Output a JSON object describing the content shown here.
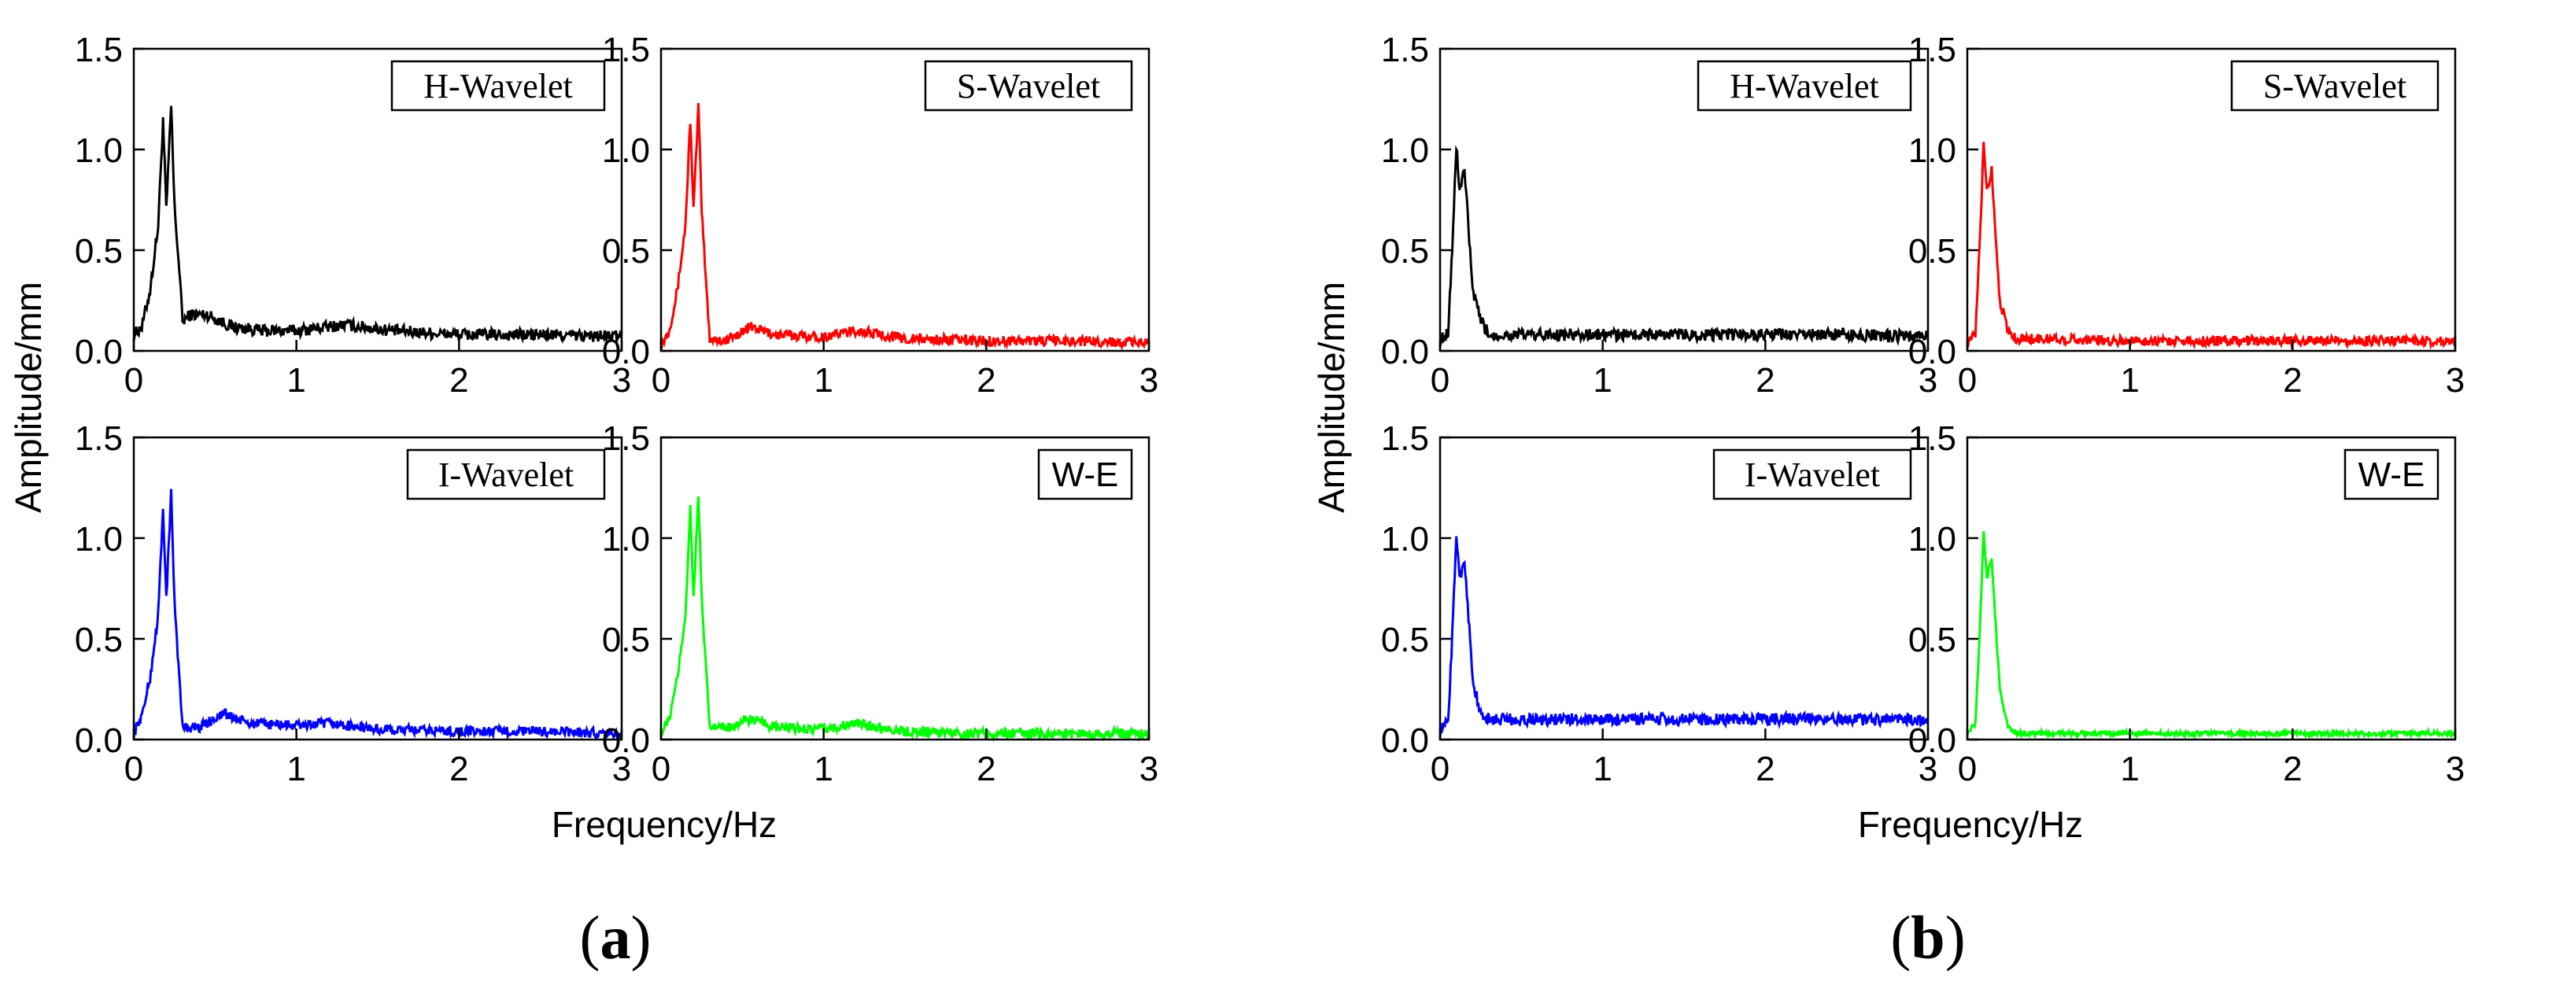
{
  "figure": {
    "panels": [
      {
        "label_open": "(",
        "label_letter": "a",
        "label_close": ")",
        "ylabel": "Amplitude/mm",
        "xlabel": "Frequency/Hz"
      },
      {
        "label_open": "(",
        "label_letter": "b",
        "label_close": ")",
        "ylabel": "Amplitude/mm",
        "xlabel": "Frequency/Hz"
      }
    ]
  },
  "chart_data": [
    {
      "type": "line",
      "panel": "a",
      "legend": "H-Wavelet",
      "legend_placement": "top-right",
      "color": "#000000",
      "xlim": [
        0,
        3
      ],
      "ylim": [
        0,
        1.5
      ],
      "xticks": [
        "0",
        "1",
        "2",
        "3"
      ],
      "yticks": [
        "0.0",
        "0.5",
        "1.0",
        "1.5"
      ],
      "grid": false,
      "x": [
        0,
        0.05,
        0.1,
        0.15,
        0.18,
        0.2,
        0.23,
        0.25,
        0.28,
        0.3,
        0.35,
        0.45,
        0.6,
        0.8,
        1.0,
        1.3,
        1.6,
        2.0,
        2.5,
        3.0
      ],
      "y": [
        0.08,
        0.12,
        0.3,
        0.62,
        1.15,
        0.7,
        1.22,
        0.72,
        0.4,
        0.15,
        0.18,
        0.18,
        0.12,
        0.1,
        0.1,
        0.13,
        0.1,
        0.08,
        0.08,
        0.07
      ],
      "noise": 0.03
    },
    {
      "type": "line",
      "panel": "a",
      "legend": "S-Wavelet",
      "legend_placement": "top-right",
      "color": "#ff0000",
      "xlim": [
        0,
        3
      ],
      "ylim": [
        0,
        1.5
      ],
      "xticks": [
        "0",
        "1",
        "2",
        "3"
      ],
      "yticks": [
        "0.0",
        "0.5",
        "1.0",
        "1.5"
      ],
      "grid": false,
      "x": [
        0,
        0.05,
        0.1,
        0.15,
        0.18,
        0.2,
        0.23,
        0.25,
        0.28,
        0.3,
        0.4,
        0.55,
        0.7,
        1.0,
        1.2,
        1.5,
        2.0,
        2.5,
        3.0
      ],
      "y": [
        0.03,
        0.1,
        0.3,
        0.62,
        1.15,
        0.7,
        1.22,
        0.7,
        0.3,
        0.06,
        0.05,
        0.12,
        0.08,
        0.07,
        0.1,
        0.06,
        0.05,
        0.05,
        0.04
      ],
      "noise": 0.025
    },
    {
      "type": "line",
      "panel": "a",
      "legend": "I-Wavelet",
      "legend_placement": "top-right",
      "color": "#0000ff",
      "xlim": [
        0,
        3
      ],
      "ylim": [
        0,
        1.5
      ],
      "xticks": [
        "0",
        "1",
        "2",
        "3"
      ],
      "yticks": [
        "0.0",
        "0.5",
        "1.0",
        "1.5"
      ],
      "grid": false,
      "x": [
        0,
        0.05,
        0.1,
        0.15,
        0.18,
        0.2,
        0.23,
        0.25,
        0.28,
        0.3,
        0.4,
        0.55,
        0.7,
        1.0,
        1.2,
        1.5,
        2.0,
        2.5,
        3.0
      ],
      "y": [
        0.03,
        0.12,
        0.3,
        0.62,
        1.15,
        0.7,
        1.22,
        0.7,
        0.3,
        0.06,
        0.06,
        0.13,
        0.08,
        0.07,
        0.08,
        0.05,
        0.04,
        0.04,
        0.03
      ],
      "noise": 0.025
    },
    {
      "type": "line",
      "panel": "a",
      "legend": "W-E",
      "legend_placement": "top-right",
      "color": "#00ff00",
      "xlim": [
        0,
        3
      ],
      "ylim": [
        0,
        1.5
      ],
      "xticks": [
        "0",
        "1",
        "2",
        "3"
      ],
      "yticks": [
        "0.0",
        "0.5",
        "1.0",
        "1.5"
      ],
      "grid": false,
      "x": [
        0,
        0.05,
        0.1,
        0.15,
        0.18,
        0.2,
        0.23,
        0.25,
        0.28,
        0.3,
        0.4,
        0.55,
        0.7,
        1.0,
        1.2,
        1.5,
        2.0,
        2.5,
        3.0
      ],
      "y": [
        0.03,
        0.1,
        0.3,
        0.62,
        1.15,
        0.7,
        1.22,
        0.7,
        0.3,
        0.06,
        0.06,
        0.1,
        0.06,
        0.05,
        0.08,
        0.04,
        0.03,
        0.03,
        0.03
      ],
      "noise": 0.025
    },
    {
      "type": "line",
      "panel": "b",
      "legend": "H-Wavelet",
      "legend_placement": "top-right",
      "color": "#000000",
      "xlim": [
        0,
        3
      ],
      "ylim": [
        0,
        1.5
      ],
      "xticks": [
        "0",
        "1",
        "2",
        "3"
      ],
      "yticks": [
        "0.0",
        "0.5",
        "1.0",
        "1.5"
      ],
      "grid": false,
      "x": [
        0,
        0.05,
        0.08,
        0.1,
        0.12,
        0.15,
        0.18,
        0.2,
        0.25,
        0.3,
        0.5,
        1.0,
        1.5,
        2.0,
        2.5,
        3.0
      ],
      "y": [
        0.05,
        0.1,
        0.6,
        1.02,
        0.8,
        0.9,
        0.55,
        0.3,
        0.15,
        0.08,
        0.08,
        0.08,
        0.08,
        0.08,
        0.08,
        0.07
      ],
      "noise": 0.03
    },
    {
      "type": "line",
      "panel": "b",
      "legend": "S-Wavelet",
      "legend_placement": "top-right",
      "color": "#ff0000",
      "xlim": [
        0,
        3
      ],
      "ylim": [
        0,
        1.5
      ],
      "xticks": [
        "0",
        "1",
        "2",
        "3"
      ],
      "yticks": [
        "0.0",
        "0.5",
        "1.0",
        "1.5"
      ],
      "grid": false,
      "x": [
        0,
        0.05,
        0.08,
        0.1,
        0.12,
        0.15,
        0.18,
        0.2,
        0.25,
        0.3,
        0.5,
        1.0,
        1.5,
        2.0,
        2.5,
        3.0
      ],
      "y": [
        0.04,
        0.08,
        0.6,
        1.03,
        0.8,
        0.9,
        0.5,
        0.25,
        0.1,
        0.06,
        0.06,
        0.05,
        0.05,
        0.05,
        0.05,
        0.05
      ],
      "noise": 0.025
    },
    {
      "type": "line",
      "panel": "b",
      "legend": "I-Wavelet",
      "legend_placement": "top-right",
      "color": "#0000ff",
      "xlim": [
        0,
        3
      ],
      "ylim": [
        0,
        1.5
      ],
      "xticks": [
        "0",
        "1",
        "2",
        "3"
      ],
      "yticks": [
        "0.0",
        "0.5",
        "1.0",
        "1.5"
      ],
      "grid": false,
      "x": [
        0,
        0.05,
        0.08,
        0.1,
        0.12,
        0.15,
        0.18,
        0.2,
        0.25,
        0.3,
        0.5,
        1.0,
        1.5,
        2.0,
        2.5,
        3.0
      ],
      "y": [
        0.04,
        0.1,
        0.6,
        1.03,
        0.8,
        0.9,
        0.55,
        0.3,
        0.12,
        0.1,
        0.1,
        0.1,
        0.1,
        0.1,
        0.1,
        0.1
      ],
      "noise": 0.03
    },
    {
      "type": "line",
      "panel": "b",
      "legend": "W-E",
      "legend_placement": "top-right",
      "color": "#00ff00",
      "xlim": [
        0,
        3
      ],
      "ylim": [
        0,
        1.5
      ],
      "xticks": [
        "0",
        "1",
        "2",
        "3"
      ],
      "yticks": [
        "0.0",
        "0.5",
        "1.0",
        "1.5"
      ],
      "grid": false,
      "x": [
        0,
        0.05,
        0.08,
        0.1,
        0.12,
        0.15,
        0.18,
        0.2,
        0.25,
        0.3,
        0.5,
        1.0,
        1.5,
        2.0,
        2.5,
        3.0
      ],
      "y": [
        0.03,
        0.08,
        0.6,
        1.03,
        0.8,
        0.9,
        0.5,
        0.25,
        0.06,
        0.03,
        0.03,
        0.03,
        0.03,
        0.03,
        0.03,
        0.03
      ],
      "noise": 0.012
    }
  ]
}
